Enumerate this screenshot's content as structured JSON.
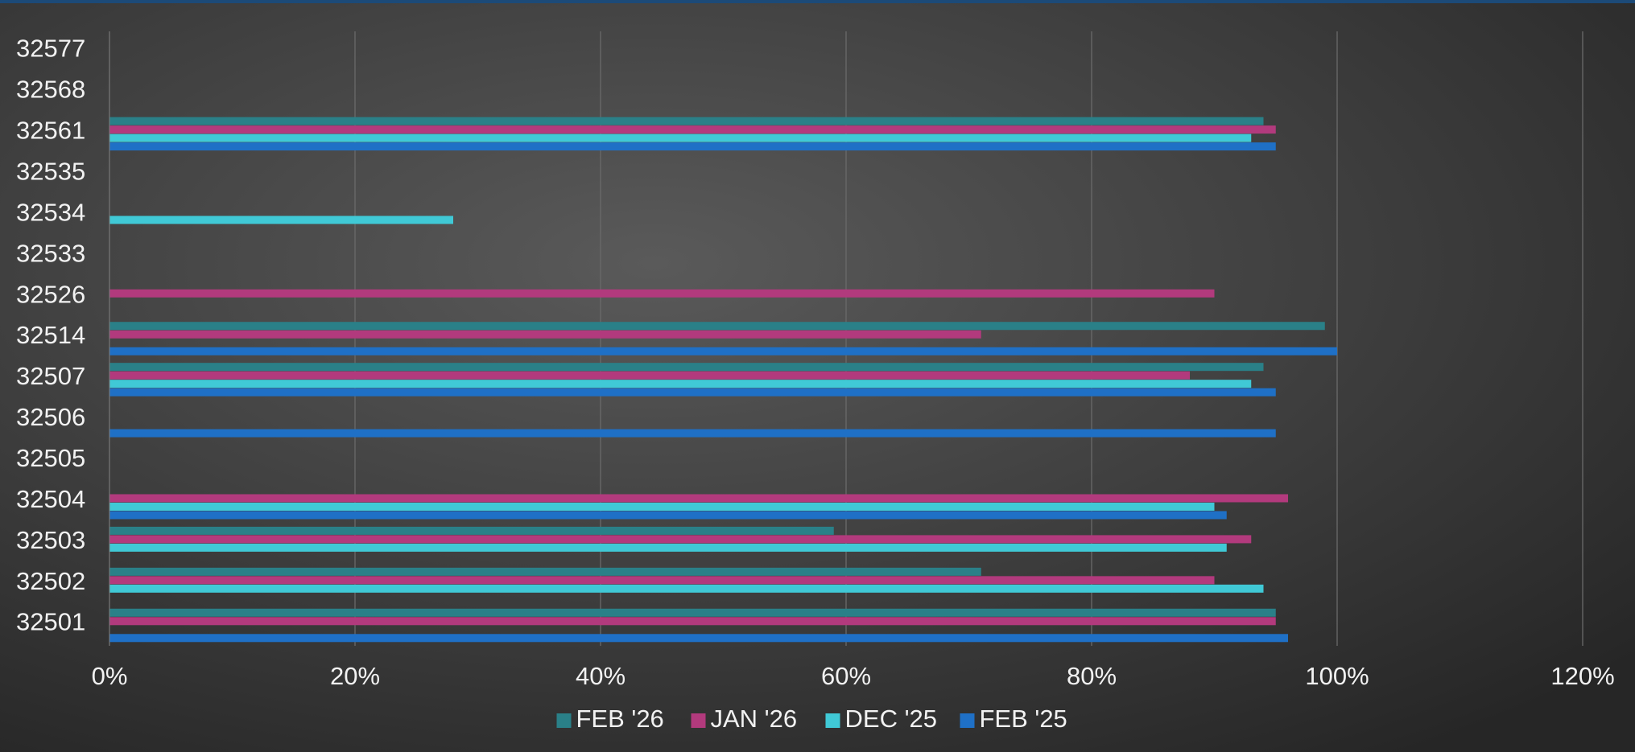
{
  "chart_data": {
    "type": "hbar",
    "categories": [
      "32577",
      "32568",
      "32561",
      "32535",
      "32534",
      "32533",
      "32526",
      "32514",
      "32507",
      "32506",
      "32505",
      "32504",
      "32503",
      "32502",
      "32501"
    ],
    "series": [
      {
        "name": "FEB '26",
        "color": "#2a8088",
        "values": [
          null,
          null,
          94,
          null,
          null,
          null,
          null,
          99,
          94,
          null,
          null,
          null,
          59,
          71,
          95
        ]
      },
      {
        "name": "JAN '26",
        "color": "#b23a7d",
        "values": [
          null,
          null,
          95,
          null,
          null,
          null,
          90,
          71,
          88,
          null,
          null,
          96,
          93,
          90,
          95
        ]
      },
      {
        "name": "DEC '25",
        "color": "#40c9d6",
        "values": [
          null,
          null,
          93,
          null,
          28,
          null,
          null,
          null,
          93,
          null,
          null,
          90,
          91,
          94,
          null
        ]
      },
      {
        "name": "FEB '25",
        "color": "#1f70c6",
        "values": [
          null,
          null,
          95,
          null,
          null,
          null,
          null,
          100,
          95,
          95,
          null,
          91,
          null,
          null,
          96
        ]
      }
    ],
    "xlim": [
      0,
      120
    ],
    "xticks": [
      {
        "value": 0,
        "label": "0%"
      },
      {
        "value": 20,
        "label": "20%"
      },
      {
        "value": 40,
        "label": "40%"
      },
      {
        "value": 60,
        "label": "60%"
      },
      {
        "value": 80,
        "label": "80%"
      },
      {
        "value": 100,
        "label": "100%"
      },
      {
        "value": 120,
        "label": "120%"
      }
    ],
    "grid": true,
    "legend": "bottom"
  }
}
